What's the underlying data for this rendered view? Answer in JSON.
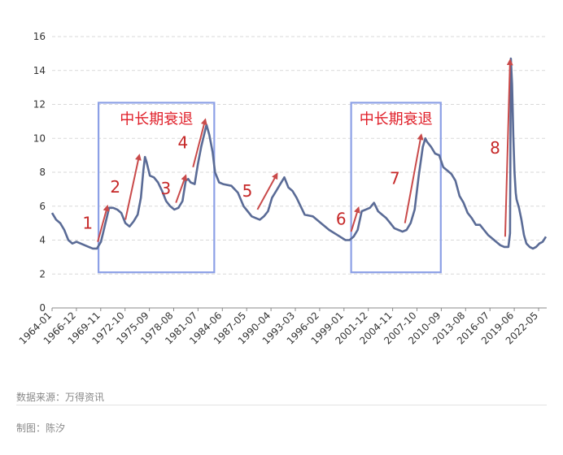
{
  "chart_data": {
    "type": "line",
    "ylim": [
      0,
      16
    ],
    "y_ticks": [
      0,
      2,
      4,
      6,
      8,
      10,
      12,
      14,
      16
    ],
    "x_tick_labels": [
      "1964-01",
      "1966-12",
      "1969-11",
      "1972-10",
      "1975-09",
      "1978-08",
      "1981-07",
      "1984-06",
      "1987-05",
      "1990-04",
      "1993-03",
      "1996-02",
      "1999-01",
      "2001-12",
      "2004-11",
      "2007-10",
      "2010-09",
      "2013-08",
      "2016-07",
      "2019-06",
      "2022-05"
    ],
    "x_range": [
      1964.0,
      2024.7
    ],
    "grid": true,
    "line_color": "#5a6b96",
    "series": [
      {
        "points": [
          [
            1964.0,
            5.6
          ],
          [
            1964.5,
            5.2
          ],
          [
            1965.0,
            5.0
          ],
          [
            1965.5,
            4.6
          ],
          [
            1966.0,
            4.0
          ],
          [
            1966.5,
            3.8
          ],
          [
            1967.0,
            3.9
          ],
          [
            1967.5,
            3.8
          ],
          [
            1968.0,
            3.7
          ],
          [
            1968.5,
            3.6
          ],
          [
            1969.0,
            3.5
          ],
          [
            1969.5,
            3.5
          ],
          [
            1970.0,
            3.9
          ],
          [
            1970.5,
            4.9
          ],
          [
            1971.0,
            5.9
          ],
          [
            1971.5,
            5.9
          ],
          [
            1972.0,
            5.8
          ],
          [
            1972.5,
            5.6
          ],
          [
            1973.0,
            5.0
          ],
          [
            1973.5,
            4.8
          ],
          [
            1974.0,
            5.1
          ],
          [
            1974.5,
            5.5
          ],
          [
            1974.9,
            6.5
          ],
          [
            1975.2,
            8.1
          ],
          [
            1975.4,
            8.9
          ],
          [
            1975.6,
            8.6
          ],
          [
            1976.0,
            7.8
          ],
          [
            1976.5,
            7.7
          ],
          [
            1977.0,
            7.4
          ],
          [
            1977.5,
            6.9
          ],
          [
            1978.0,
            6.3
          ],
          [
            1978.5,
            6.0
          ],
          [
            1979.0,
            5.8
          ],
          [
            1979.5,
            5.9
          ],
          [
            1980.0,
            6.3
          ],
          [
            1980.4,
            7.5
          ],
          [
            1980.7,
            7.6
          ],
          [
            1981.0,
            7.4
          ],
          [
            1981.5,
            7.3
          ],
          [
            1981.9,
            8.5
          ],
          [
            1982.3,
            9.5
          ],
          [
            1982.7,
            10.3
          ],
          [
            1982.95,
            10.8
          ],
          [
            1983.3,
            10.2
          ],
          [
            1983.7,
            9.2
          ],
          [
            1984.0,
            8.0
          ],
          [
            1984.5,
            7.4
          ],
          [
            1985.0,
            7.3
          ],
          [
            1986.0,
            7.2
          ],
          [
            1986.8,
            6.8
          ],
          [
            1987.5,
            6.0
          ],
          [
            1988.0,
            5.7
          ],
          [
            1988.5,
            5.4
          ],
          [
            1989.0,
            5.3
          ],
          [
            1989.5,
            5.2
          ],
          [
            1990.0,
            5.4
          ],
          [
            1990.5,
            5.7
          ],
          [
            1991.0,
            6.5
          ],
          [
            1991.5,
            6.9
          ],
          [
            1992.0,
            7.3
          ],
          [
            1992.5,
            7.7
          ],
          [
            1993.0,
            7.1
          ],
          [
            1993.5,
            6.9
          ],
          [
            1994.0,
            6.5
          ],
          [
            1994.5,
            6.0
          ],
          [
            1995.0,
            5.5
          ],
          [
            1996.0,
            5.4
          ],
          [
            1997.0,
            5.0
          ],
          [
            1998.0,
            4.6
          ],
          [
            1999.0,
            4.3
          ],
          [
            2000.0,
            4.0
          ],
          [
            2000.5,
            4.0
          ],
          [
            2001.0,
            4.2
          ],
          [
            2001.5,
            4.6
          ],
          [
            2002.0,
            5.7
          ],
          [
            2002.5,
            5.8
          ],
          [
            2003.0,
            5.9
          ],
          [
            2003.5,
            6.2
          ],
          [
            2004.0,
            5.7
          ],
          [
            2004.5,
            5.5
          ],
          [
            2005.0,
            5.3
          ],
          [
            2005.5,
            5.0
          ],
          [
            2006.0,
            4.7
          ],
          [
            2006.5,
            4.6
          ],
          [
            2007.0,
            4.5
          ],
          [
            2007.5,
            4.6
          ],
          [
            2008.0,
            5.0
          ],
          [
            2008.5,
            5.8
          ],
          [
            2009.0,
            7.8
          ],
          [
            2009.5,
            9.5
          ],
          [
            2009.8,
            10.0
          ],
          [
            2010.0,
            9.8
          ],
          [
            2010.5,
            9.5
          ],
          [
            2011.0,
            9.1
          ],
          [
            2011.5,
            9.0
          ],
          [
            2012.0,
            8.3
          ],
          [
            2012.5,
            8.1
          ],
          [
            2013.0,
            7.9
          ],
          [
            2013.5,
            7.5
          ],
          [
            2014.0,
            6.6
          ],
          [
            2014.5,
            6.2
          ],
          [
            2015.0,
            5.6
          ],
          [
            2015.5,
            5.3
          ],
          [
            2016.0,
            4.9
          ],
          [
            2016.5,
            4.9
          ],
          [
            2017.0,
            4.6
          ],
          [
            2017.5,
            4.3
          ],
          [
            2018.0,
            4.1
          ],
          [
            2018.5,
            3.9
          ],
          [
            2019.0,
            3.7
          ],
          [
            2019.5,
            3.6
          ],
          [
            2020.0,
            3.6
          ],
          [
            2020.2,
            4.4
          ],
          [
            2020.3,
            14.7
          ],
          [
            2020.45,
            13.2
          ],
          [
            2020.6,
            10.2
          ],
          [
            2020.75,
            8.0
          ],
          [
            2020.9,
            6.8
          ],
          [
            2021.0,
            6.4
          ],
          [
            2021.3,
            5.9
          ],
          [
            2021.6,
            5.2
          ],
          [
            2021.9,
            4.3
          ],
          [
            2022.2,
            3.8
          ],
          [
            2022.6,
            3.6
          ],
          [
            2023.0,
            3.5
          ],
          [
            2023.4,
            3.6
          ],
          [
            2023.8,
            3.8
          ],
          [
            2024.2,
            3.9
          ],
          [
            2024.6,
            4.2
          ]
        ]
      }
    ],
    "recession_boxes": [
      {
        "x_start": 1969.7,
        "x_end": 1983.9,
        "y_top": 12.1,
        "y_bottom": 2.1,
        "label": "中长期衰退"
      },
      {
        "x_start": 2000.7,
        "x_end": 2011.7,
        "y_top": 12.1,
        "y_bottom": 2.1,
        "label": "中长期衰退"
      }
    ],
    "annotations": [
      {
        "label": "1",
        "from": [
          1969.6,
          3.9
        ],
        "to": [
          1970.8,
          6.0
        ]
      },
      {
        "label": "2",
        "from": [
          1973.0,
          5.2
        ],
        "to": [
          1974.7,
          9.0
        ]
      },
      {
        "label": "3",
        "from": [
          1979.2,
          6.2
        ],
        "to": [
          1980.4,
          7.8
        ]
      },
      {
        "label": "4",
        "from": [
          1981.3,
          8.3
        ],
        "to": [
          1982.8,
          11.1
        ]
      },
      {
        "label": "5",
        "from": [
          1989.2,
          5.8
        ],
        "to": [
          1991.6,
          7.9
        ]
      },
      {
        "label": "6",
        "from": [
          2000.7,
          4.5
        ],
        "to": [
          2001.6,
          5.9
        ]
      },
      {
        "label": "7",
        "from": [
          2007.3,
          5.0
        ],
        "to": [
          2009.3,
          10.2
        ]
      },
      {
        "label": "8",
        "from": [
          2019.6,
          4.2
        ],
        "to": [
          2020.2,
          14.6
        ]
      }
    ],
    "box_label_color": "#e0202a",
    "box_border_color": "#8ca0e6",
    "arrow_color": "#c94a4a"
  },
  "footer": {
    "source": "数据来源：万得资讯",
    "author": "制图：陈汐"
  }
}
